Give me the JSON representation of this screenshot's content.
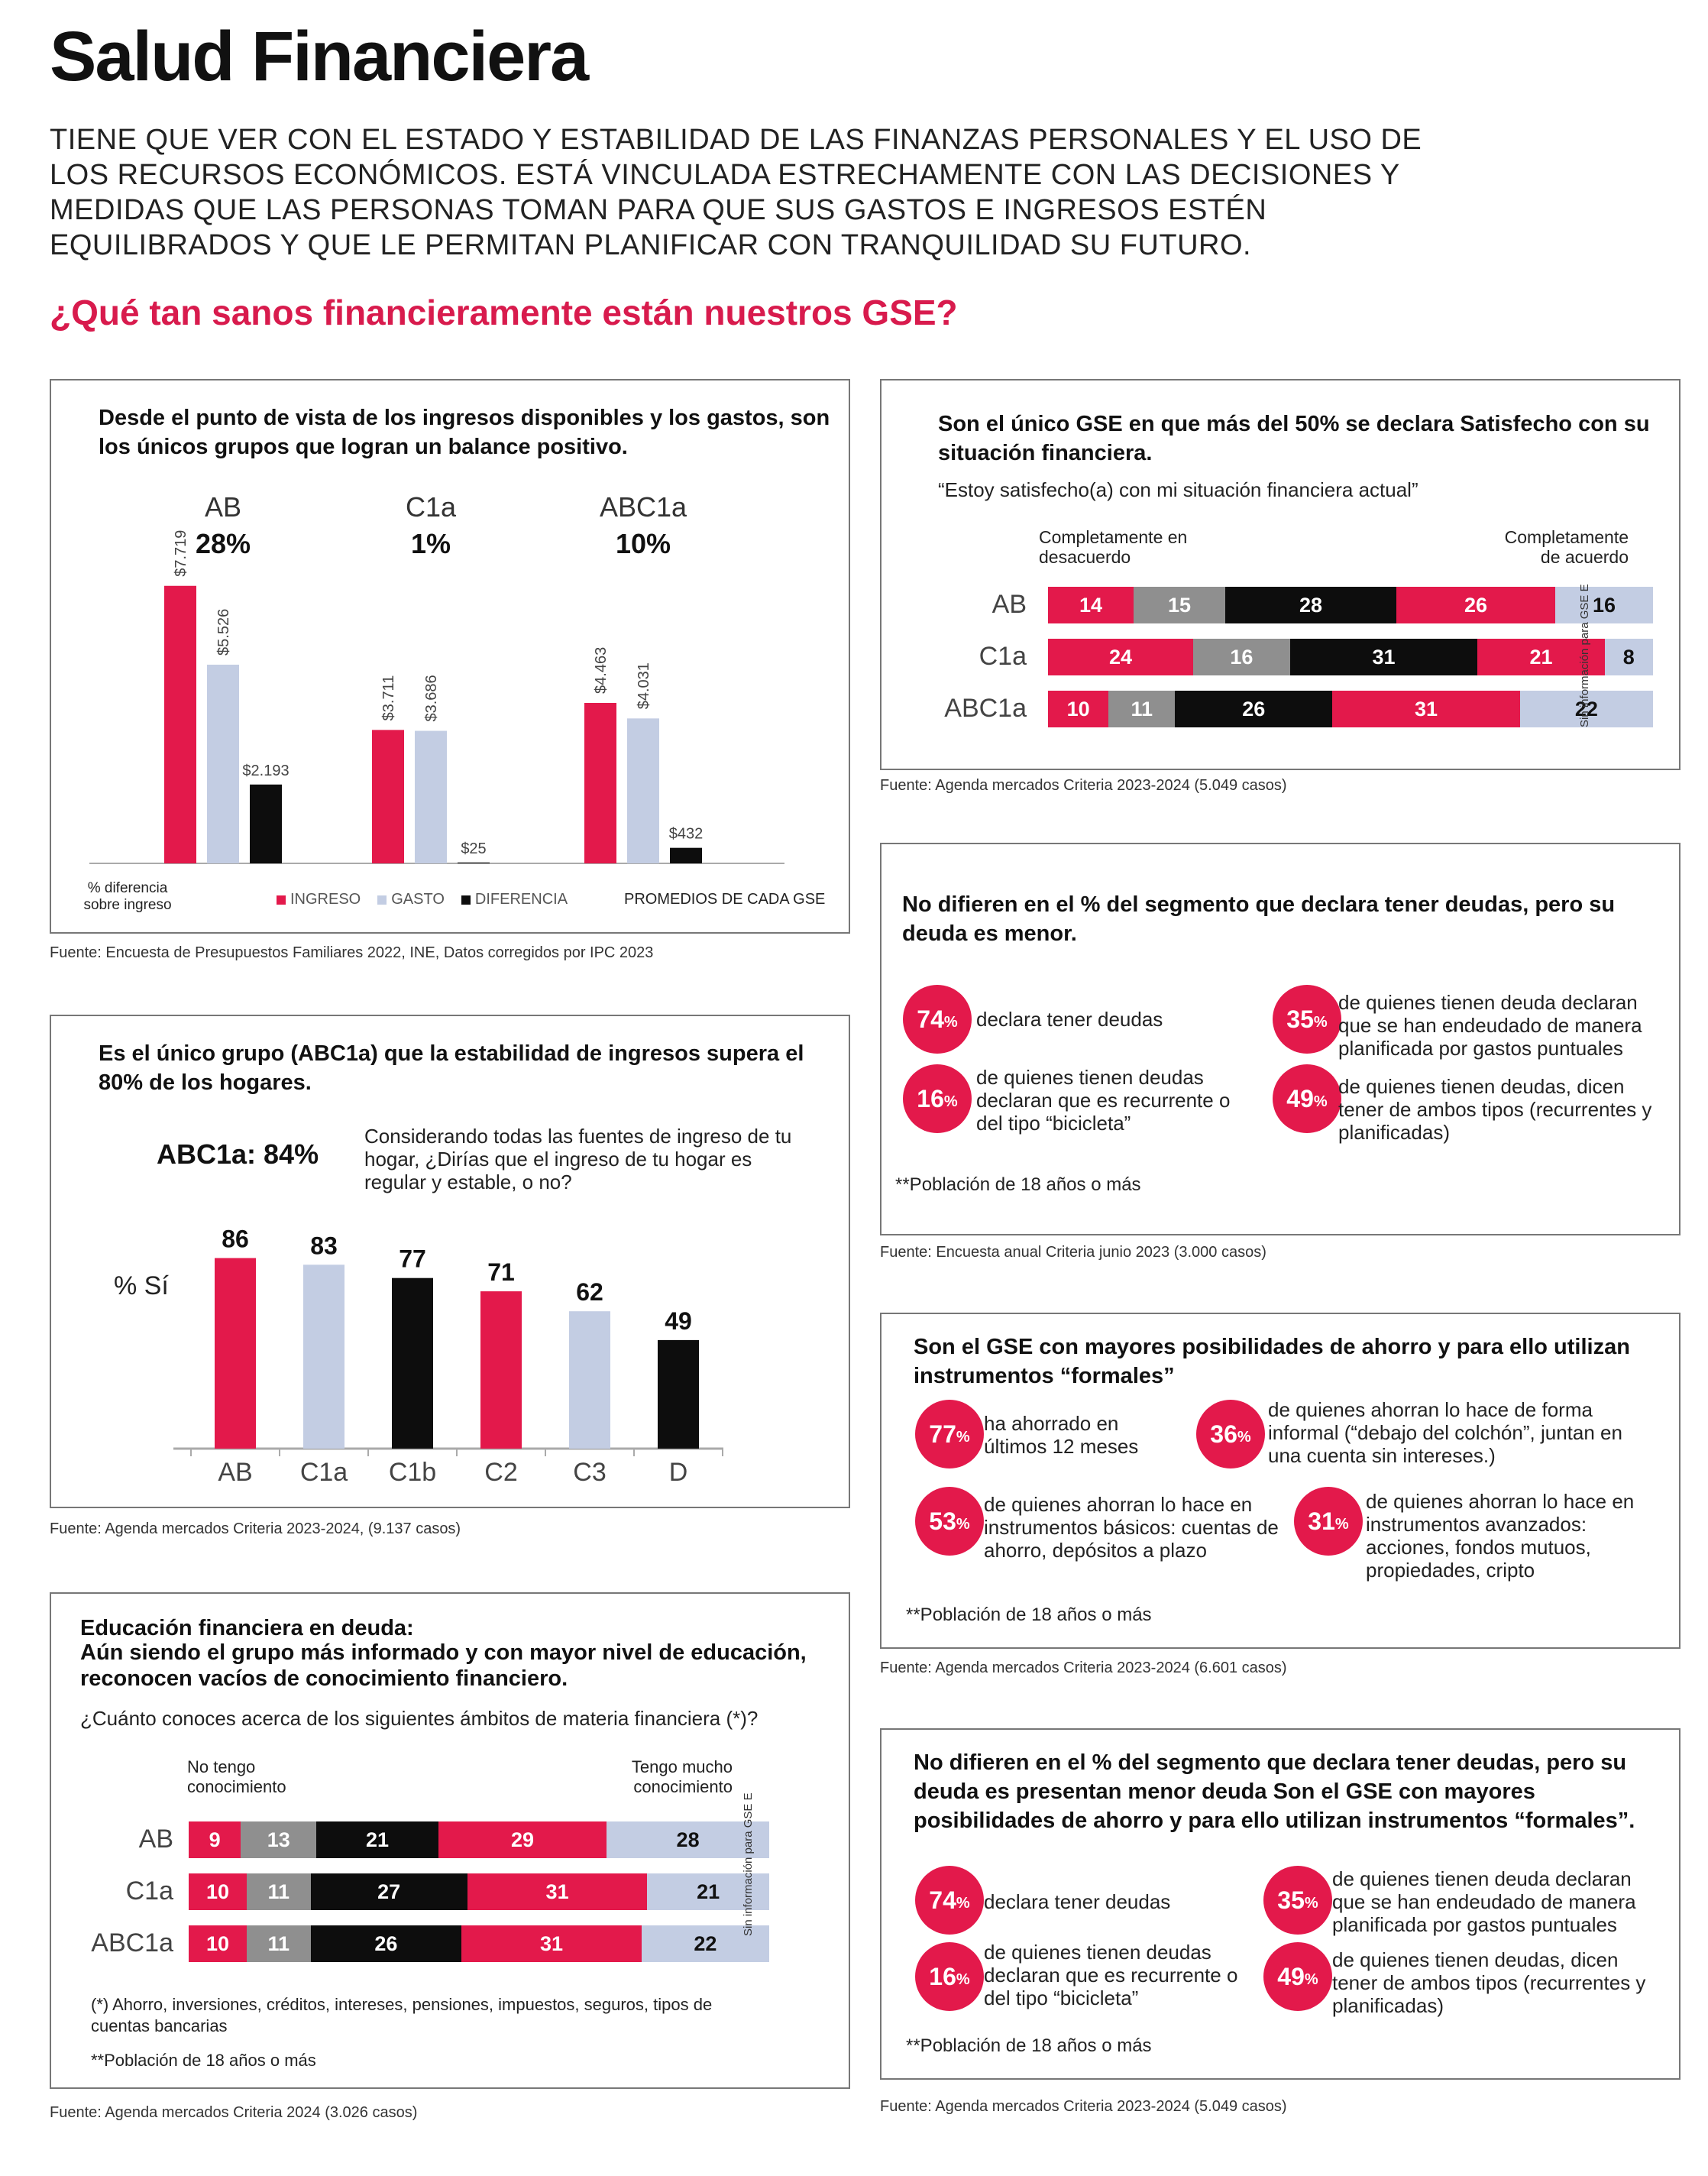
{
  "header": {
    "title": "Salud Financiera",
    "intro": "TIENE QUE VER CON EL ESTADO Y ESTABILIDAD DE LAS FINANZAS PERSONALES Y EL USO DE LOS RECURSOS ECONÓMICOS. ESTÁ VINCULADA ESTRECHAMENTE CON LAS DECISIONES Y MEDIDAS QUE LAS PERSONAS TOMAN PARA QUE SUS GASTOS E INGRESOS ESTÉN EQUILIBRADOS Y QUE LE PERMITAN PLANIFICAR CON TRANQUILIDAD SU FUTURO.",
    "question": "¿Qué tan sanos financieramente están nuestros GSE?"
  },
  "colors": {
    "red": "#e3194b",
    "light_blue": "#c3cde3",
    "black": "#0d0d0d",
    "gray": "#8f8f8f",
    "accent_text": "#d81b4d"
  },
  "panel1": {
    "title": "Desde el punto de vista de los ingresos disponibles y los gastos, son los únicos grupos que logran un balance positivo.",
    "xlabel": "% diferencia sobre ingreso",
    "legend": [
      "INGRESO",
      "GASTO",
      "DIFERENCIA"
    ],
    "note": "PROMEDIOS DE CADA GSE",
    "source": "Fuente: Encuesta de Presupuestos Familiares 2022, INE, Datos corregidos por IPC 2023"
  },
  "panel2": {
    "title": "Es el único grupo (ABC1a) que la estabilidad de ingresos supera el 80% de los hogares.",
    "highlight": "ABC1a: 84%",
    "question": "Considerando todas las fuentes de ingreso de tu hogar, ¿Dirías que el ingreso de tu hogar es regular y estable, o no?",
    "ylabel": "% Sí",
    "source": "Fuente: Agenda mercados Criteria 2023-2024, (9.137 casos)"
  },
  "panel3": {
    "title_line1": "Educación financiera en deuda:",
    "title_line2": "Aún siendo el grupo más informado y con mayor nivel de educación, reconocen vacíos de conocimiento financiero.",
    "question": "¿Cuánto conoces acerca de los siguientes ámbitos de materia financiera (*)?",
    "left_label": "No tengo conocimiento",
    "right_label": "Tengo mucho conocimiento",
    "side_note": "Sin información para GSE E",
    "footnote1": "(*) Ahorro, inversiones, créditos, intereses, pensiones, impuestos, seguros, tipos de cuentas bancarias",
    "footnote2": "**Población de 18 años o más",
    "source": "Fuente: Agenda mercados Criteria 2024 (3.026 casos)"
  },
  "panel4": {
    "title": "Son el único GSE en que más del 50% se declara Satisfecho con su situación financiera.",
    "quote": "“Estoy satisfecho(a) con mi situación financiera actual”",
    "left_label": "Completamente en desacuerdo",
    "right_label": "Completamente de acuerdo",
    "side_note": "Sin información para GSE E",
    "source": "Fuente: Agenda mercados Criteria 2023-2024 (5.049 casos)"
  },
  "panel5": {
    "title": "No difieren en el % del segmento que declara tener deudas, pero su deuda es menor.",
    "stats": [
      {
        "value": "74",
        "text": "declara tener deudas"
      },
      {
        "value": "35",
        "text": "de quienes tienen deuda declaran que se han endeudado de manera planificada por gastos puntuales"
      },
      {
        "value": "16",
        "text": "de quienes tienen deudas declaran que es recurrente o del tipo “bicicleta”"
      },
      {
        "value": "49",
        "text": "de quienes tienen deudas, dicen tener de ambos tipos (recurrentes y planificadas)"
      }
    ],
    "pct_sign": "%",
    "footnote": "**Población de 18 años o más",
    "source": "Fuente: Encuesta anual Criteria junio 2023 (3.000 casos)"
  },
  "panel6": {
    "title": "Son el GSE con mayores posibilidades de ahorro y para ello utilizan instrumentos “formales”",
    "stats": [
      {
        "value": "77",
        "text": "ha ahorrado en últimos 12 meses"
      },
      {
        "value": "36",
        "text": "de quienes ahorran lo hace de forma informal (“debajo del colchón”, juntan en una cuenta sin intereses.)"
      },
      {
        "value": "53",
        "text": "de quienes ahorran lo hace en instrumentos básicos: cuentas de ahorro, depósitos a plazo"
      },
      {
        "value": "31",
        "text": "de quienes ahorran lo hace en instrumentos avanzados: acciones, fondos mutuos, propiedades, cripto"
      }
    ],
    "pct_sign": "%",
    "footnote": "**Población de 18 años o más",
    "source": "Fuente: Agenda mercados Criteria 2023-2024 (6.601 casos)"
  },
  "panel7": {
    "title": "No difieren en el % del segmento que declara tener deudas, pero su deuda es presentan menor deuda Son el GSE con mayores posibilidades de ahorro y para ello utilizan instrumentos “formales”.",
    "stats": [
      {
        "value": "74",
        "text": "declara tener deudas"
      },
      {
        "value": "35",
        "text": "de quienes tienen deuda declaran que se han endeudado de manera planificada por gastos puntuales"
      },
      {
        "value": "16",
        "text": "de quienes tienen deudas declaran que es recurrente o del tipo “bicicleta”"
      },
      {
        "value": "49",
        "text": "de quienes tienen deudas, dicen tener de ambos tipos (recurrentes y planificadas)"
      }
    ],
    "pct_sign": "%",
    "footnote": "**Población de 18 años o más",
    "source": "Fuente: Agenda mercados Criteria 2023-2024 (5.049 casos)"
  },
  "chart_data": [
    {
      "type": "bar",
      "title": "Desde el punto de vista de los ingresos disponibles y los gastos, son los únicos grupos que logran un balance positivo.",
      "categories": [
        "AB",
        "C1a",
        "ABC1a"
      ],
      "category_diff_pct": [
        "28%",
        "1%",
        "10%"
      ],
      "series": [
        {
          "name": "INGRESO",
          "values": [
            7719,
            3711,
            4463
          ],
          "labels": [
            "$7.719",
            "$3.711",
            "$4.463"
          ]
        },
        {
          "name": "GASTO",
          "values": [
            5526,
            3686,
            4031
          ],
          "labels": [
            "$5.526",
            "$3.686",
            "$4.031"
          ]
        },
        {
          "name": "DIFERENCIA",
          "values": [
            2193,
            25,
            432
          ],
          "labels": [
            "$2.193",
            "$25",
            "$432"
          ]
        }
      ],
      "ylim": [
        0,
        8500
      ]
    },
    {
      "type": "bar",
      "categories": [
        "AB",
        "C1a",
        "C1b",
        "C2",
        "C3",
        "D"
      ],
      "values": [
        86,
        83,
        77,
        71,
        62,
        49
      ],
      "bar_colors": [
        "#e3194b",
        "#c3cde3",
        "#0d0d0d",
        "#e3194b",
        "#c3cde3",
        "#0d0d0d"
      ],
      "ylabel": "% Sí",
      "ylim": [
        0,
        100
      ]
    },
    {
      "type": "bar",
      "stacked": "horizontal-100",
      "categories": [
        "AB",
        "C1a",
        "ABC1a"
      ],
      "values": [
        [
          9,
          13,
          21,
          29,
          28
        ],
        [
          10,
          11,
          27,
          31,
          21
        ],
        [
          10,
          11,
          26,
          31,
          22
        ]
      ],
      "segment_colors": [
        "#e3194b",
        "#8f8f8f",
        "#0d0d0d",
        "#e3194b",
        "#c3cde3"
      ],
      "label_colors": [
        "#ffffff",
        "#ffffff",
        "#ffffff",
        "#ffffff",
        "#111111"
      ]
    },
    {
      "type": "bar",
      "stacked": "horizontal-100",
      "categories": [
        "AB",
        "C1a",
        "ABC1a"
      ],
      "values": [
        [
          14,
          15,
          28,
          26,
          16
        ],
        [
          24,
          16,
          31,
          21,
          8
        ],
        [
          10,
          11,
          26,
          31,
          22
        ]
      ],
      "segment_colors": [
        "#e3194b",
        "#8f8f8f",
        "#0d0d0d",
        "#e3194b",
        "#c3cde3"
      ],
      "label_colors": [
        "#ffffff",
        "#ffffff",
        "#ffffff",
        "#ffffff",
        "#111111"
      ]
    }
  ]
}
